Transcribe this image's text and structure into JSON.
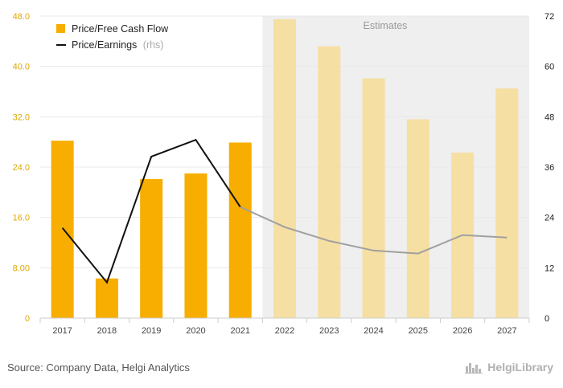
{
  "chart_data": {
    "type": "bar",
    "categories": [
      "2017",
      "2018",
      "2019",
      "2020",
      "2021",
      "2022",
      "2023",
      "2024",
      "2025",
      "2026",
      "2027"
    ],
    "estimate_start_category": "2022",
    "estimates_label": "Estimates",
    "series": [
      {
        "name": "Price/Free Cash Flow",
        "type": "bar",
        "axis": "left",
        "values": [
          28.2,
          6.3,
          22.1,
          23.0,
          27.9,
          47.5,
          43.2,
          38.1,
          31.6,
          26.3,
          36.5
        ]
      },
      {
        "name": "Price/Earnings",
        "name_suffix": "(rhs)",
        "type": "line",
        "axis": "right",
        "values": [
          21.5,
          8.5,
          38.5,
          42.5,
          26.5,
          21.7,
          18.4,
          16.1,
          15.4,
          19.8,
          19.2
        ]
      }
    ],
    "y_left": {
      "ylim": [
        0,
        48
      ],
      "ticks": [
        "0",
        "8.00",
        "16.0",
        "24.0",
        "32.0",
        "40.0",
        "48.0"
      ]
    },
    "y_right": {
      "ylim": [
        0,
        72
      ],
      "ticks": [
        "0",
        "12",
        "24",
        "36",
        "48",
        "60",
        "72"
      ]
    },
    "grid": true,
    "legend_position": "top-left"
  },
  "colors": {
    "bar_actual": "#f7ae00",
    "bar_estimate": "#f6dfa3",
    "line_actual": "#111111",
    "line_estimate": "#a0a0a0",
    "estimate_shade": "#efefef",
    "gridline": "#e8e8e8"
  },
  "footer": {
    "source": "Source: Company Data, Helgi Analytics",
    "brand": "HelgiLibrary"
  },
  "icons": {
    "brand_logo": "city-skyline-icon"
  }
}
